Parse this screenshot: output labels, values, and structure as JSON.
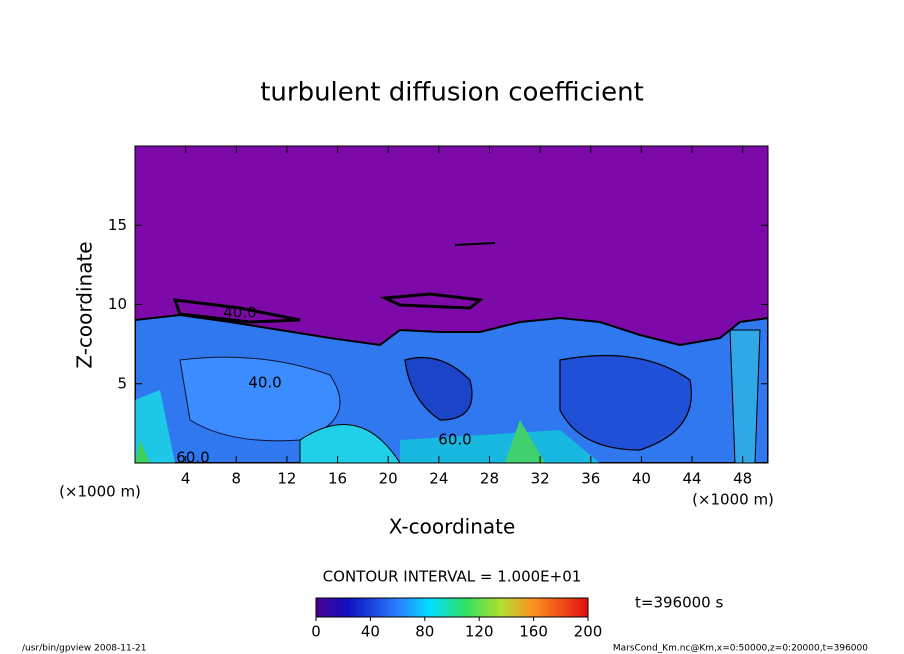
{
  "chart_data": {
    "type": "contour",
    "title": "turbulent diffusion coefficient",
    "xlabel": "X-coordinate",
    "ylabel": "Z-coordinate",
    "x_unit": "(×1000 m)",
    "y_unit": "(×1000 m)",
    "xlim": [
      0,
      50
    ],
    "ylim": [
      0,
      20
    ],
    "xticks": [
      4,
      8,
      12,
      16,
      20,
      24,
      28,
      32,
      36,
      40,
      44,
      48
    ],
    "yticks": [
      5,
      10,
      15
    ],
    "contour_labels": [
      "40.0",
      "40.0",
      "60.0",
      "60.0"
    ],
    "contour_interval": "CONTOUR INTERVAL = 1.000E+01",
    "time": "t=396000 s",
    "colorbar": {
      "lim": [
        0,
        200
      ],
      "ticks": [
        0,
        40,
        80,
        120,
        160,
        200
      ]
    },
    "footer_left": "/usr/bin/gpview   2008-11-21",
    "footer_right": "MarsCond_Km.nc@Km,x=0:50000,z=0:20000,t=396000"
  }
}
